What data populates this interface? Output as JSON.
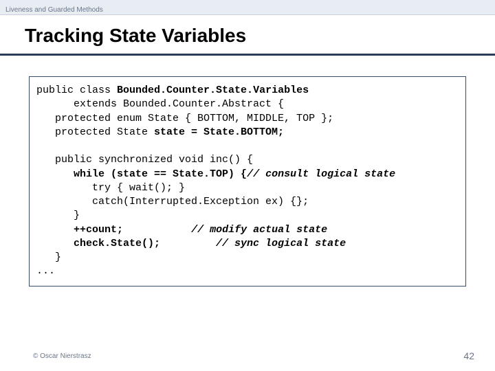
{
  "topbar": {
    "text": "Liveness and Guarded Methods"
  },
  "title": "Tracking State Variables",
  "code": {
    "l1a": "public class ",
    "l1b": "Bounded.Counter.State.Variables",
    "l2": "      extends Bounded.Counter.Abstract {",
    "l3": "   protected enum State { BOTTOM, MIDDLE, TOP };",
    "l4a": "   protected State ",
    "l4b": "state = State.BOTTOM;",
    "blank1": " ",
    "l5": "   public synchronized void inc() {",
    "l6a": "      while (state == State.TOP) {",
    "l6b": "// consult logical state",
    "l7": "         try { wait(); }",
    "l8": "         catch(Interrupted.Exception ex) {};",
    "l9": "      }",
    "l10a": "      ++count;",
    "l10b": "           ",
    "l10c": "// modify actual state",
    "l11a": "      check.State();",
    "l11b": "         ",
    "l11c": "// sync logical state",
    "l12": "   }",
    "l13": "..."
  },
  "footer": {
    "copyright": "© Oscar Nierstrasz",
    "pagenum": "42"
  },
  "colors": {
    "topbar_bg": "#e8ecf3",
    "hr": "#2a3a5a",
    "muted": "#6a7688",
    "border": "#3a4a6a"
  }
}
